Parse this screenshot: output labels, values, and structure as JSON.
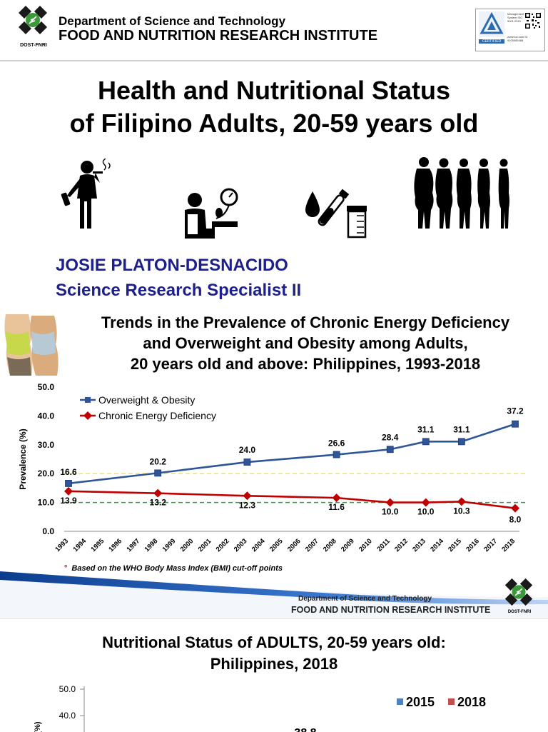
{
  "header": {
    "department": "Department of Science and Technology",
    "institute": "FOOD AND NUTRITION RESEARCH INSTITUTE",
    "logo_caption": "DOST-FNRI"
  },
  "certification": {
    "text": "Management System ISO 9001:2015",
    "label": "CERTIFIED",
    "brand": "TÜVRheinland",
    "id": "www.tuv.com ID 9105085488"
  },
  "title_slide": {
    "title_line1": "Health and Nutritional Status",
    "title_line2": "of Filipino Adults, 20-59 years old",
    "icons": [
      "smoking-man-icon",
      "blood-pressure-icon",
      "blood-and-urine-sample-icon",
      "body-silhouettes-icon"
    ],
    "author": "JOSIE PLATON-DESNACIDO",
    "role": "Science Research Specialist II"
  },
  "trends_slide": {
    "title_line1": "Trends in the Prevalence of Chronic Energy Deficiency",
    "title_line2": "and Overweight and Obesity among Adults,",
    "title_line3": "20 years old and above: Philippines, 1993-2018",
    "footnote": "Based on the WHO Body Mass Index (BMI) cut-off points",
    "footnote_marker": "°",
    "footer_department": "Department of Science and Technology",
    "footer_institute": "FOOD AND NUTRITION RESEARCH INSTITUTE",
    "footer_logo_caption": "DOST-FNRI"
  },
  "chart_data": [
    {
      "type": "line",
      "ylabel": "Prevalence (%)",
      "xlabel": "",
      "ylim": [
        0,
        50
      ],
      "yticks": [
        "0.0",
        "10.0",
        "20.0",
        "30.0",
        "40.0",
        "50.0"
      ],
      "x_ticks": [
        "1993",
        "1994",
        "1995",
        "1996",
        "1997",
        "1998",
        "1999",
        "2000",
        "2001",
        "2002",
        "2003",
        "2004",
        "2005",
        "2006",
        "2007",
        "2008",
        "2009",
        "2010",
        "2011",
        "2012",
        "2013",
        "2014",
        "2015",
        "2016",
        "2017",
        "2018"
      ],
      "legend_position": "top-left",
      "series": [
        {
          "name": "Overweight & Obesity",
          "color": "#2e5597",
          "marker": "square",
          "x": [
            "1993",
            "1998",
            "2003",
            "2008",
            "2011",
            "2013",
            "2015",
            "2018"
          ],
          "values": [
            16.6,
            20.2,
            24.0,
            26.6,
            28.4,
            31.1,
            31.1,
            37.2
          ],
          "labels": [
            "16.6",
            "20.2",
            "24.0",
            "26.6",
            "28.4",
            "31.1",
            "31.1",
            "37.2"
          ]
        },
        {
          "name": "Chronic Energy Deficiency",
          "color": "#c00000",
          "marker": "diamond",
          "x": [
            "1993",
            "1998",
            "2003",
            "2008",
            "2011",
            "2013",
            "2015",
            "2018"
          ],
          "values": [
            13.9,
            13.2,
            12.3,
            11.6,
            10.0,
            10.0,
            10.3,
            8.0
          ],
          "labels": [
            "13.9",
            "13.2",
            "12.3",
            "11.6",
            "10.0",
            "10.0",
            "10.3",
            "8.0"
          ]
        }
      ],
      "reference_lines": [
        {
          "value": 20,
          "color": "#f2e84b",
          "style": "dashed"
        },
        {
          "value": 10,
          "color": "#22a83a",
          "style": "dashed"
        }
      ]
    },
    {
      "type": "bar",
      "title": "Nutritional Status of ADULTS, 20-59 years old: Philippines, 2018",
      "ylabel": "(%)",
      "ylim": [
        0,
        50
      ],
      "yticks_visible": [
        "50.0",
        "40.0"
      ],
      "legend_position": "top-right",
      "series": [
        {
          "name": "2015",
          "color": "#4f81bd"
        },
        {
          "name": "2018",
          "color": "#c0504d"
        }
      ],
      "partial_value_label": "38.8"
    }
  ],
  "nutrition_slide": {
    "title_line1": "Nutritional Status of ADULTS, 20-59 years old:",
    "title_line2": "Philippines, 2018"
  }
}
